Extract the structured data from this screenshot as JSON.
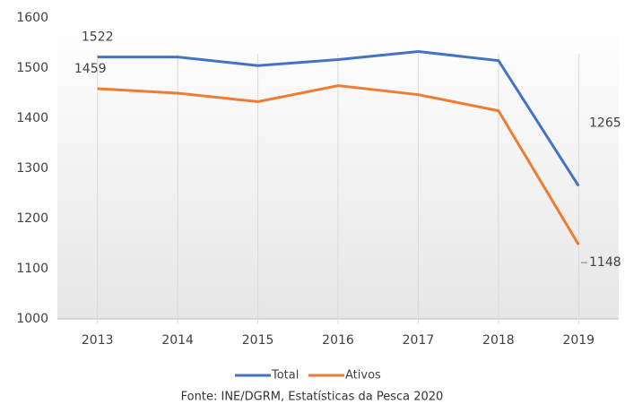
{
  "chart_data": {
    "type": "line",
    "categories": [
      "2013",
      "2014",
      "2015",
      "2016",
      "2017",
      "2018",
      "2019"
    ],
    "series": [
      {
        "name": "Total",
        "color": "#4472c4",
        "values": [
          1522,
          1522,
          1505,
          1517,
          1533,
          1515,
          1265
        ],
        "data_labels": [
          0,
          6
        ]
      },
      {
        "name": "Ativos",
        "color": "#ed7d31",
        "values": [
          1459,
          1450,
          1433,
          1465,
          1447,
          1415,
          1148
        ],
        "data_labels": [
          0,
          6
        ]
      }
    ],
    "ylim": [
      1000,
      1600
    ],
    "yticks": [
      1000,
      1100,
      1200,
      1300,
      1400,
      1500,
      1600
    ],
    "grid": true,
    "legend": "bottom",
    "source": "Fonte: INE/DGRM, Estatísticas da Pesca 2020"
  }
}
